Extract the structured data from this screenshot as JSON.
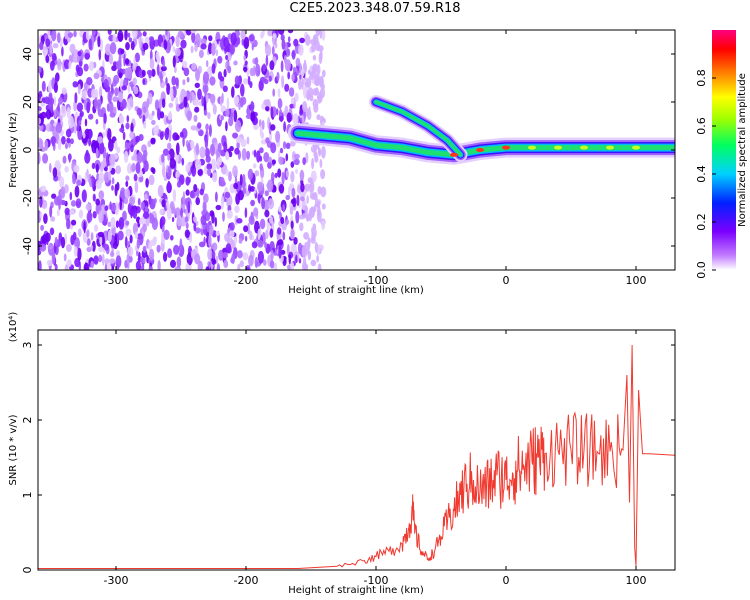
{
  "title": "C2E5.2023.348.07.59.R18",
  "colors": {
    "snr_line": "#f03a30",
    "background": "#ffffff",
    "axis": "#000000"
  },
  "chart_data": [
    {
      "type": "heatmap",
      "xlabel": "Height of straight line (km)",
      "ylabel": "Frequency (Hz)",
      "xlim": [
        -360,
        130
      ],
      "ylim": [
        -50,
        50
      ],
      "xticks": [
        "-300",
        "-200",
        "-100",
        "0",
        "100"
      ],
      "yticks": [
        "-40",
        "-20",
        "0",
        "20",
        "40"
      ],
      "colorbar": {
        "label": "Normalized spectral amplitude",
        "range": [
          0,
          1
        ],
        "ticks": [
          "0.0",
          "0.2",
          "0.4",
          "0.6",
          "0.8"
        ],
        "colormap": "rainbow (white-violet-blue-cyan-green-yellow-orange-red-magenta)"
      },
      "features": {
        "noise_region_x": [
          -360,
          -155
        ],
        "main_track": [
          {
            "x": -160,
            "y": 7
          },
          {
            "x": -140,
            "y": 6
          },
          {
            "x": -120,
            "y": 5
          },
          {
            "x": -100,
            "y": 2
          },
          {
            "x": -80,
            "y": 1
          },
          {
            "x": -60,
            "y": -1
          },
          {
            "x": -40,
            "y": -2
          },
          {
            "x": -20,
            "y": 0
          },
          {
            "x": 0,
            "y": 1
          },
          {
            "x": 20,
            "y": 1
          },
          {
            "x": 40,
            "y": 1
          },
          {
            "x": 60,
            "y": 1
          },
          {
            "x": 80,
            "y": 1
          },
          {
            "x": 100,
            "y": 1
          },
          {
            "x": 130,
            "y": 1
          }
        ],
        "upper_branch": [
          {
            "x": -100,
            "y": 20
          },
          {
            "x": -80,
            "y": 16
          },
          {
            "x": -60,
            "y": 10
          },
          {
            "x": -45,
            "y": 4
          },
          {
            "x": -35,
            "y": -2
          }
        ]
      }
    },
    {
      "type": "line",
      "xlabel": "Height of straight line (km)",
      "ylabel": "SNR (10 * v/v)",
      "y_scale_label": "(x10⁴)",
      "xlim": [
        -360,
        130
      ],
      "ylim": [
        0,
        3.2
      ],
      "xticks": [
        "-300",
        "-200",
        "-100",
        "0",
        "100"
      ],
      "yticks": [
        "0",
        "1",
        "2",
        "3"
      ],
      "series": [
        {
          "points": [
            [
              -360,
              0.02
            ],
            [
              -250,
              0.02
            ],
            [
              -160,
              0.02
            ],
            [
              -130,
              0.05
            ],
            [
              -110,
              0.12
            ],
            [
              -100,
              0.18
            ],
            [
              -90,
              0.25
            ],
            [
              -80,
              0.35
            ],
            [
              -75,
              0.55
            ],
            [
              -72,
              0.8
            ],
            [
              -70,
              0.5
            ],
            [
              -65,
              0.25
            ],
            [
              -60,
              0.15
            ],
            [
              -55,
              0.25
            ],
            [
              -50,
              0.45
            ],
            [
              -45,
              0.65
            ],
            [
              -40,
              0.8
            ],
            [
              -35,
              1.0
            ],
            [
              -30,
              1.15
            ],
            [
              -25,
              1.2
            ],
            [
              -20,
              1.05
            ],
            [
              -15,
              1.1
            ],
            [
              -10,
              1.2
            ],
            [
              -5,
              1.25
            ],
            [
              0,
              1.2
            ],
            [
              5,
              1.3
            ],
            [
              10,
              1.35
            ],
            [
              15,
              1.4
            ],
            [
              20,
              1.45
            ],
            [
              25,
              1.5
            ],
            [
              30,
              1.55
            ],
            [
              40,
              1.6
            ],
            [
              50,
              1.6
            ],
            [
              60,
              1.6
            ],
            [
              70,
              1.58
            ],
            [
              80,
              1.58
            ],
            [
              90,
              1.6
            ],
            [
              93,
              2.6
            ],
            [
              95,
              0.9
            ],
            [
              97,
              3.0
            ],
            [
              99,
              0.3
            ],
            [
              100,
              0.05
            ],
            [
              102,
              2.4
            ],
            [
              105,
              1.55
            ],
            [
              110,
              1.55
            ],
            [
              130,
              1.53
            ]
          ]
        }
      ]
    }
  ]
}
